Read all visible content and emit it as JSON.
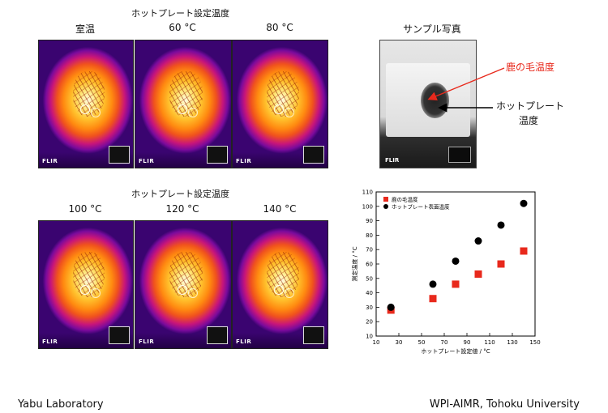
{
  "top_section": {
    "header": "ホットプレート設定温度",
    "labels": [
      "室温",
      "60 °C",
      "80 °C"
    ]
  },
  "bottom_section": {
    "header": "ホットプレート設定温度",
    "labels": [
      "100 °C",
      "120 °C",
      "140 °C"
    ]
  },
  "sample_photo": {
    "title": "サンプル写真",
    "fur_label": "鹿の毛温度",
    "plate_label_line1": "ホットプレート",
    "plate_label_line2": "温度",
    "fur_label_color": "#e8291c"
  },
  "thermal_brand": "FLIR",
  "chart_data": {
    "type": "scatter",
    "title": "",
    "xlabel": "ホットプレート設定値 / °C",
    "ylabel": "測定温度 / °C",
    "xlim": [
      10,
      150
    ],
    "ylim": [
      10,
      110
    ],
    "xticks": [
      10,
      30,
      50,
      70,
      90,
      110,
      130,
      150
    ],
    "yticks": [
      10,
      20,
      30,
      40,
      50,
      60,
      70,
      80,
      90,
      100,
      110
    ],
    "legend_position": "top-left",
    "grid": false,
    "series": [
      {
        "name": "鹿の毛温度",
        "marker": "square",
        "color": "#e8291c",
        "x": [
          23,
          60,
          80,
          100,
          120,
          140
        ],
        "y": [
          28,
          36,
          46,
          53,
          60,
          69
        ]
      },
      {
        "name": "ホットプレート表面温度",
        "marker": "circle",
        "color": "#000000",
        "x": [
          23,
          60,
          80,
          100,
          120,
          140
        ],
        "y": [
          30,
          46,
          62,
          76,
          87,
          102
        ]
      }
    ]
  },
  "footer": {
    "left": "Yabu Laboratory",
    "right": "WPI-AIMR, Tohoku University"
  }
}
